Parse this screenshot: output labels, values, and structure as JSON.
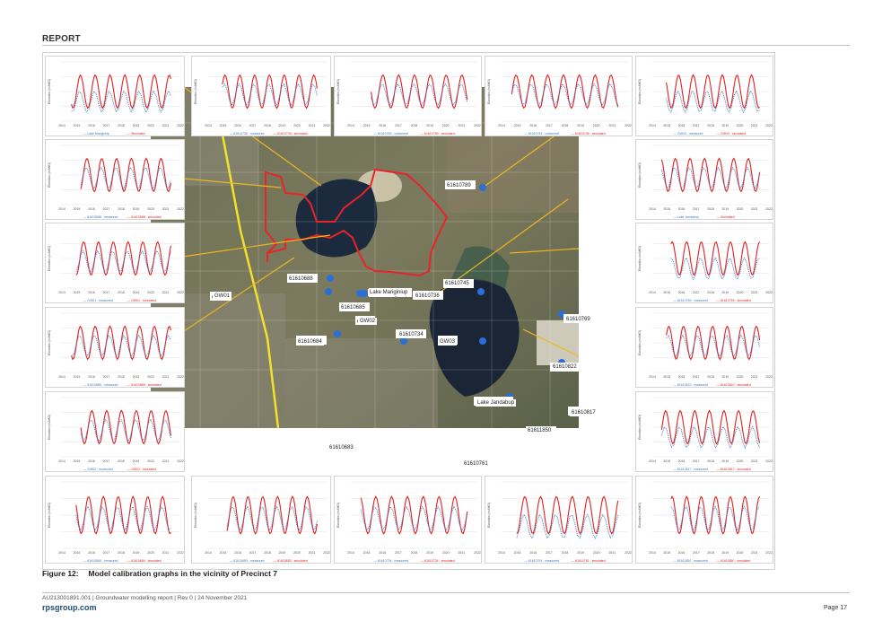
{
  "header": {
    "label": "REPORT"
  },
  "caption": {
    "number": "Figure 12:",
    "text": "Model calibration graphs in the vicinity of Precinct 7"
  },
  "footer": {
    "meta": "AU213001891.001  |  Groundwater modelling report  |  Rev 0  |  24 November 2021",
    "site": "rpsgroup.com",
    "page": "Page 17"
  },
  "map": {
    "labels": [
      "61610789",
      "61610688",
      "GW01",
      "Lake Mariginiup",
      "61610736",
      "61610745",
      "61610685",
      "GW02",
      "61610684",
      "61610734",
      "GW03",
      "61610769",
      "61610822",
      "Lake Jandabup",
      "61610817",
      "61611850",
      "61610683",
      "61610761"
    ]
  },
  "graphs": {
    "y_axis_label": "Elevation (mAHD)",
    "x_ticks": [
      "2014",
      "2015",
      "2016",
      "2017",
      "2018",
      "2019",
      "2020",
      "2021",
      "2022"
    ],
    "colors": {
      "measured": "#3a78c2",
      "simulated": "#e02020"
    },
    "panels": [
      {
        "legend_measured": "Lake Mariginiup",
        "legend_simulated": "Simulated"
      },
      {
        "legend_measured": "61610736 - measured",
        "legend_simulated": "61610736 - simulated"
      },
      {
        "legend_measured": "61610789 - measured",
        "legend_simulated": "61610789 - simulated"
      },
      {
        "legend_measured": "61610745 - measured",
        "legend_simulated": "61610745 - simulated"
      },
      {
        "legend_measured": "GW03 - measured",
        "legend_simulated": "GW03 - simulated"
      },
      {
        "legend_measured": "61610688 - measured",
        "legend_simulated": "61610688 - simulated"
      },
      {
        "legend_measured": "Lake Jandabup",
        "legend_simulated": "Simulated"
      },
      {
        "legend_measured": "GW01 - measured",
        "legend_simulated": "GW01 - simulated"
      },
      {
        "legend_measured": "61610769 - measured",
        "legend_simulated": "61610769 - simulated"
      },
      {
        "legend_measured": "61610685 - measured",
        "legend_simulated": "61610685 - simulated"
      },
      {
        "legend_measured": "61610822 - measured",
        "legend_simulated": "61610822 - simulated"
      },
      {
        "legend_measured": "GW02 - measured",
        "legend_simulated": "GW02 - simulated"
      },
      {
        "legend_measured": "61610817 - measured",
        "legend_simulated": "61610817 - simulated"
      },
      {
        "legend_measured": "61610684 - measured",
        "legend_simulated": "61610684 - simulated"
      },
      {
        "legend_measured": "61610683 - measured",
        "legend_simulated": "61610683 - simulated"
      },
      {
        "legend_measured": "61610734 - measured",
        "legend_simulated": "61610734 - simulated"
      },
      {
        "legend_measured": "61610761 - measured",
        "legend_simulated": "61610761 - simulated"
      },
      {
        "legend_measured": "61611850 - measured",
        "legend_simulated": "61611850 - simulated"
      }
    ]
  }
}
